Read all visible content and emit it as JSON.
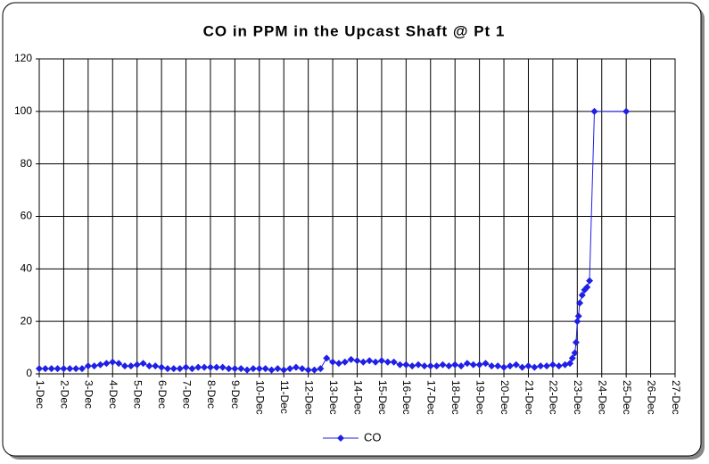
{
  "chart_data": {
    "type": "line",
    "title": "CO in PPM in the Upcast Shaft @ Pt 1",
    "x": [
      1,
      1.25,
      1.5,
      1.75,
      2,
      2.25,
      2.5,
      2.75,
      3,
      3.25,
      3.5,
      3.75,
      4,
      4.25,
      4.5,
      4.75,
      5,
      5.25,
      5.5,
      5.75,
      6,
      6.25,
      6.5,
      6.75,
      7,
      7.25,
      7.5,
      7.75,
      8,
      8.25,
      8.5,
      8.75,
      9,
      9.25,
      9.5,
      9.75,
      10,
      10.25,
      10.5,
      10.75,
      11,
      11.25,
      11.5,
      11.75,
      12,
      12.25,
      12.5,
      12.75,
      13,
      13.25,
      13.5,
      13.75,
      14,
      14.25,
      14.5,
      14.75,
      15,
      15.25,
      15.5,
      15.75,
      16,
      16.25,
      16.5,
      16.75,
      17,
      17.25,
      17.5,
      17.75,
      18,
      18.25,
      18.5,
      18.75,
      19,
      19.25,
      19.5,
      19.75,
      20,
      20.25,
      20.5,
      20.75,
      21,
      21.25,
      21.5,
      21.75,
      22,
      22.25,
      22.5,
      22.7,
      22.8,
      22.9,
      22.95,
      23,
      23.05,
      23.1,
      23.2,
      23.3,
      23.4,
      23.5,
      23.7,
      25
    ],
    "series": [
      {
        "name": "CO",
        "color": "#1f1fe6",
        "values": [
          2,
          2,
          2,
          2,
          2,
          2,
          2,
          2,
          3,
          3,
          3.5,
          4,
          4.5,
          4,
          3,
          3,
          3.5,
          4,
          3,
          3,
          2.5,
          2,
          2,
          2,
          2.5,
          2,
          2.5,
          2.5,
          2.5,
          2.5,
          2.5,
          2,
          2,
          2,
          1.5,
          2,
          2,
          2,
          1.5,
          2,
          1.5,
          2,
          2.5,
          2,
          1.5,
          1.5,
          2,
          6,
          4.5,
          4,
          4.5,
          5.5,
          5,
          4.5,
          5,
          4.5,
          5,
          4.5,
          4.5,
          3.5,
          3.5,
          3,
          3.5,
          3,
          3,
          3,
          3.5,
          3,
          3.5,
          3,
          4,
          3.5,
          3.5,
          4,
          3,
          3,
          2.5,
          3,
          3.5,
          2.5,
          3,
          2.5,
          3,
          3,
          3.5,
          3,
          3.5,
          4,
          6,
          8,
          12,
          20,
          22,
          27,
          30,
          32,
          33,
          35.5,
          100,
          100
        ]
      }
    ],
    "xlim": [
      1,
      27
    ],
    "xticks": [
      {
        "value": 1,
        "label": "1-Dec"
      },
      {
        "value": 2,
        "label": "2-Dec"
      },
      {
        "value": 3,
        "label": "3-Dec"
      },
      {
        "value": 4,
        "label": "4-Dec"
      },
      {
        "value": 5,
        "label": "5-Dec"
      },
      {
        "value": 6,
        "label": "6-Dec"
      },
      {
        "value": 7,
        "label": "7-Dec"
      },
      {
        "value": 8,
        "label": "8-Dec"
      },
      {
        "value": 9,
        "label": "9-Dec"
      },
      {
        "value": 10,
        "label": "10-Dec"
      },
      {
        "value": 11,
        "label": "11-Dec"
      },
      {
        "value": 12,
        "label": "12-Dec"
      },
      {
        "value": 13,
        "label": "13-Dec"
      },
      {
        "value": 14,
        "label": "14-Dec"
      },
      {
        "value": 15,
        "label": "15-Dec"
      },
      {
        "value": 16,
        "label": "16-Dec"
      },
      {
        "value": 17,
        "label": "17-Dec"
      },
      {
        "value": 18,
        "label": "18-Dec"
      },
      {
        "value": 19,
        "label": "19-Dec"
      },
      {
        "value": 20,
        "label": "20-Dec"
      },
      {
        "value": 21,
        "label": "21-Dec"
      },
      {
        "value": 22,
        "label": "22-Dec"
      },
      {
        "value": 23,
        "label": "23-Dec"
      },
      {
        "value": 24,
        "label": "24-Dec"
      },
      {
        "value": 25,
        "label": "25-Dec"
      },
      {
        "value": 26,
        "label": "26-Dec"
      },
      {
        "value": 27,
        "label": "27-Dec"
      }
    ],
    "ylim": [
      0,
      120
    ],
    "yticks": [
      0,
      20,
      40,
      60,
      80,
      100,
      120
    ],
    "grid": true,
    "legend": "bottom"
  }
}
